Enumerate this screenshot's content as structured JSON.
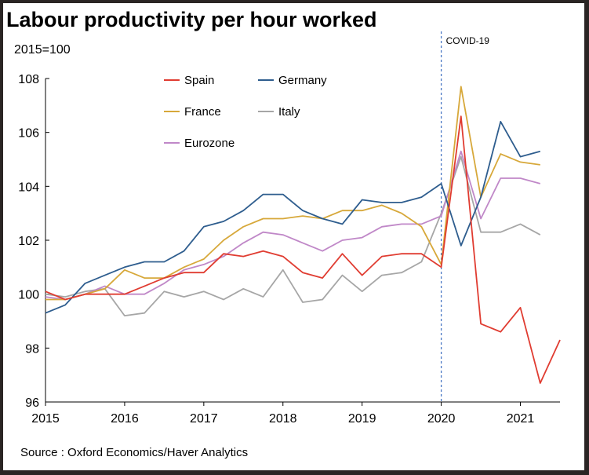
{
  "chart_data": {
    "type": "line",
    "title": "Labour productivity per hour worked",
    "subtitle": "2015=100",
    "source": "Source : Oxford Economics/Haver Analytics",
    "annotation": {
      "label": "COVID-19",
      "x": 2020
    },
    "xlabel": "",
    "ylabel": "",
    "xlim": [
      2015,
      2021.5
    ],
    "ylim": [
      96,
      108
    ],
    "x_ticks": [
      2015,
      2016,
      2017,
      2018,
      2019,
      2020,
      2021
    ],
    "x_tick_labels": [
      "2015",
      "2016",
      "2017",
      "2018",
      "2019",
      "2020",
      "2021"
    ],
    "y_ticks": [
      96,
      98,
      100,
      102,
      104,
      106,
      108
    ],
    "y_tick_labels": [
      "96",
      "98",
      "100",
      "102",
      "104",
      "106",
      "108"
    ],
    "x": [
      2015.0,
      2015.25,
      2015.5,
      2015.75,
      2016.0,
      2016.25,
      2016.5,
      2016.75,
      2017.0,
      2017.25,
      2017.5,
      2017.75,
      2018.0,
      2018.25,
      2018.5,
      2018.75,
      2019.0,
      2019.25,
      2019.5,
      2019.75,
      2020.0,
      2020.25,
      2020.5,
      2020.75,
      2021.0,
      2021.25,
      2021.5
    ],
    "series": [
      {
        "name": "Spain",
        "color": "#e03c31",
        "values": [
          100.1,
          99.8,
          100.0,
          100.0,
          100.0,
          100.3,
          100.6,
          100.8,
          100.8,
          101.5,
          101.4,
          101.6,
          101.4,
          100.8,
          100.6,
          101.5,
          100.7,
          101.4,
          101.5,
          101.5,
          101.0,
          106.6,
          98.9,
          98.6,
          99.5,
          96.7,
          98.3
        ]
      },
      {
        "name": "Germany",
        "color": "#2e5d8e",
        "values": [
          99.3,
          99.6,
          100.4,
          100.7,
          101.0,
          101.2,
          101.2,
          101.6,
          102.5,
          102.7,
          103.1,
          103.7,
          103.7,
          103.1,
          102.8,
          102.6,
          103.5,
          103.4,
          103.4,
          103.6,
          104.1,
          101.8,
          103.6,
          106.4,
          105.1,
          105.3,
          null
        ]
      },
      {
        "name": "France",
        "color": "#d7a83a",
        "values": [
          99.8,
          99.8,
          100.0,
          100.2,
          100.9,
          100.6,
          100.6,
          101.0,
          101.3,
          102.0,
          102.5,
          102.8,
          102.8,
          102.9,
          102.8,
          103.1,
          103.1,
          103.3,
          103.0,
          102.5,
          101.1,
          107.7,
          103.6,
          105.2,
          104.9,
          104.8,
          null
        ]
      },
      {
        "name": "Italy",
        "color": "#a6a6a6",
        "values": [
          100.0,
          99.9,
          100.1,
          100.2,
          99.2,
          99.3,
          100.1,
          99.9,
          100.1,
          99.8,
          100.2,
          99.9,
          100.9,
          99.7,
          99.8,
          100.7,
          100.1,
          100.7,
          100.8,
          101.2,
          103.0,
          105.1,
          102.3,
          102.3,
          102.6,
          102.2,
          null
        ]
      },
      {
        "name": "Eurozone",
        "color": "#c088c8",
        "values": [
          99.9,
          99.8,
          100.0,
          100.3,
          100.0,
          100.0,
          100.4,
          100.9,
          101.1,
          101.4,
          101.9,
          102.3,
          102.2,
          101.9,
          101.6,
          102.0,
          102.1,
          102.5,
          102.6,
          102.6,
          102.9,
          105.3,
          102.8,
          104.3,
          104.3,
          104.1,
          null
        ]
      }
    ],
    "legend": {
      "placement": "top-center",
      "entries": [
        "Spain",
        "Germany",
        "France",
        "Italy",
        "Eurozone"
      ]
    },
    "grid": false
  }
}
